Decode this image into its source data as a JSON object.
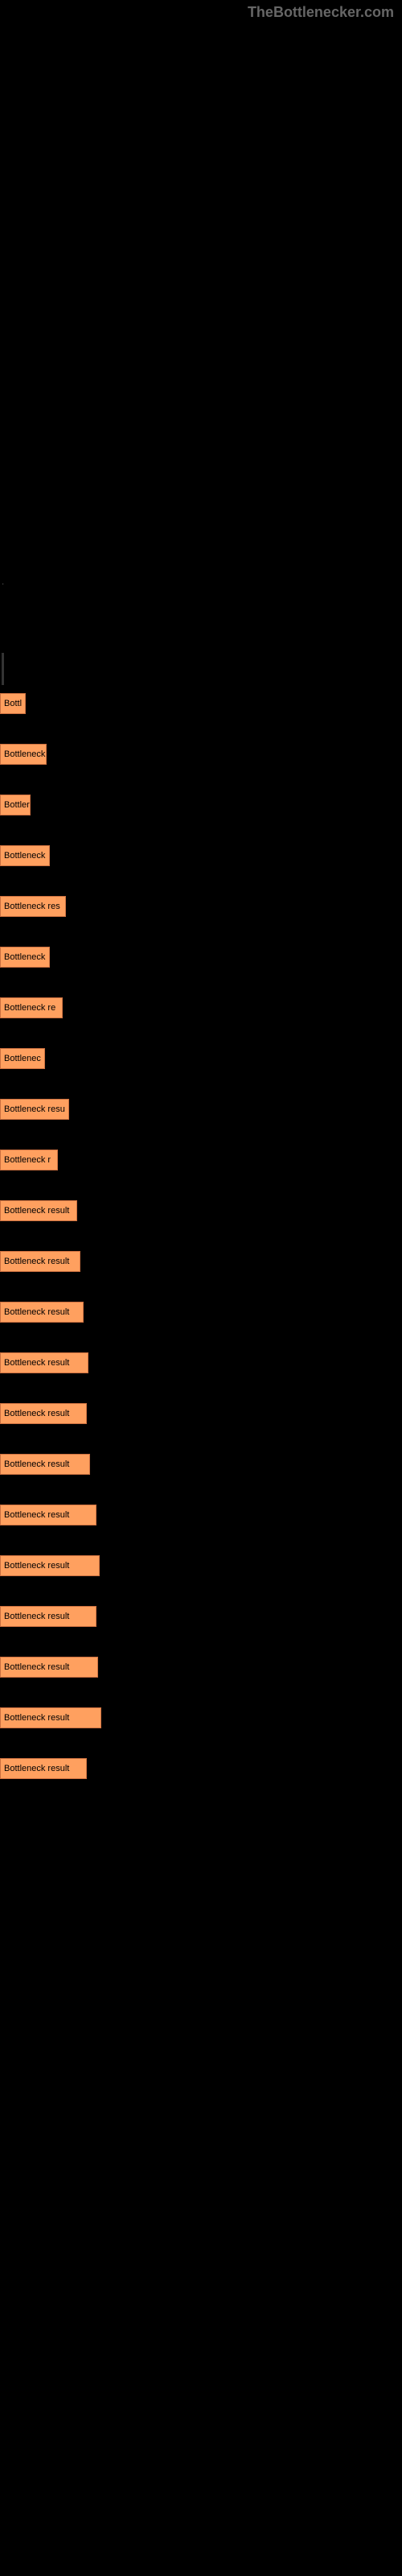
{
  "watermark": "TheBottlenecker.com",
  "chart": {
    "type": "bar",
    "bar_color": "#ffa05f",
    "bar_border_color": "#cc7040",
    "background_color": "#000000",
    "text_color": "#000000",
    "bars": [
      {
        "label": "Bottl",
        "width": 32
      },
      {
        "label": "Bottleneck",
        "width": 58
      },
      {
        "label": "Bottler",
        "width": 38
      },
      {
        "label": "Bottleneck",
        "width": 62
      },
      {
        "label": "Bottleneck res",
        "width": 82
      },
      {
        "label": "Bottleneck",
        "width": 62
      },
      {
        "label": "Bottleneck re",
        "width": 78
      },
      {
        "label": "Bottlenec",
        "width": 56
      },
      {
        "label": "Bottleneck resu",
        "width": 86
      },
      {
        "label": "Bottleneck r",
        "width": 72
      },
      {
        "label": "Bottleneck result",
        "width": 96
      },
      {
        "label": "Bottleneck result",
        "width": 100
      },
      {
        "label": "Bottleneck result",
        "width": 104
      },
      {
        "label": "Bottleneck result",
        "width": 110
      },
      {
        "label": "Bottleneck result",
        "width": 108
      },
      {
        "label": "Bottleneck result",
        "width": 112
      },
      {
        "label": "Bottleneck result",
        "width": 120
      },
      {
        "label": "Bottleneck result",
        "width": 124
      },
      {
        "label": "Bottleneck result",
        "width": 120
      },
      {
        "label": "Bottleneck result",
        "width": 122
      },
      {
        "label": "Bottleneck result",
        "width": 126
      },
      {
        "label": "Bottleneck result",
        "width": 108
      }
    ]
  }
}
